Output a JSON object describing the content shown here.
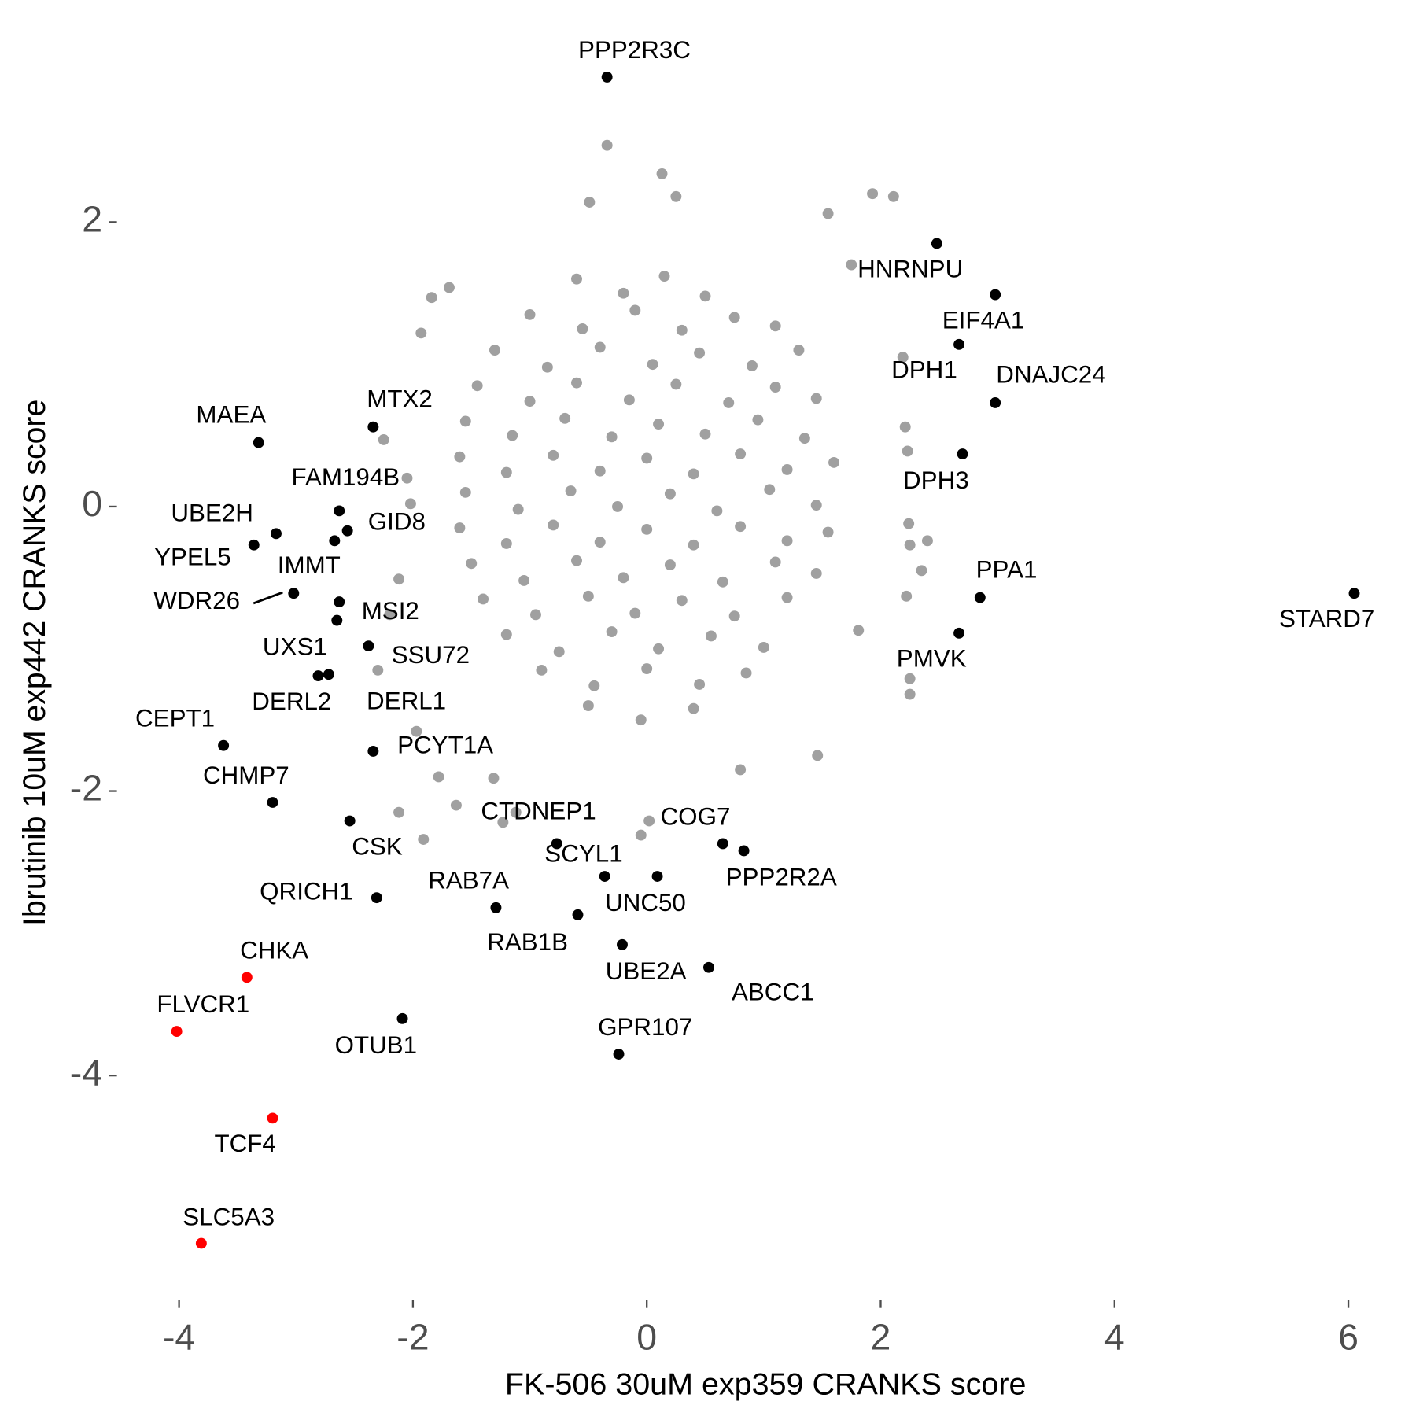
{
  "chart_data": {
    "type": "scatter",
    "x_label": "FK-506 30uM exp359 CRANKS score",
    "y_label": "Ibrutinib 10uM exp442 CRANKS score",
    "xlim": [
      -4.5,
      6.35
    ],
    "ylim": [
      -5.5,
      3.3
    ],
    "xticks": [
      -4,
      -2,
      0,
      2,
      4,
      6
    ],
    "yticks": [
      -4,
      -2,
      0,
      2
    ],
    "series": [
      {
        "color": "#a0a0a0",
        "x": [
          -0.34,
          0.13,
          1.93,
          2.11,
          -0.49,
          1.55,
          0.25,
          -1.84,
          -1.69,
          -1.93,
          1.75,
          2.19,
          2.21,
          2.23,
          2.24,
          2.25,
          2.4,
          2.35,
          2.22,
          2.25,
          2.25,
          1.81,
          1.46,
          -2.12,
          -2.2,
          -2.3,
          -2.12,
          -1.91,
          -1.97,
          -1.78,
          -1.31,
          -1.12,
          -1.23,
          -1.63,
          -0.05,
          0.02,
          0.8,
          -2.02,
          -2.25,
          -2.05,
          -0.6,
          -0.2,
          0.15,
          0.5,
          -1.0,
          -0.55,
          -0.1,
          0.3,
          0.75,
          1.1,
          -1.3,
          -0.85,
          -0.4,
          0.05,
          0.45,
          0.9,
          1.3,
          -1.45,
          -1.0,
          -0.6,
          -0.15,
          0.25,
          0.7,
          1.1,
          1.45,
          -1.55,
          -1.15,
          -0.7,
          -0.3,
          0.1,
          0.5,
          0.95,
          1.35,
          -1.6,
          -1.2,
          -0.8,
          -0.4,
          0.0,
          0.4,
          0.8,
          1.2,
          1.6,
          -1.55,
          -1.1,
          -0.65,
          -0.25,
          0.2,
          0.6,
          1.05,
          1.45,
          -1.6,
          -1.2,
          -0.8,
          -0.4,
          0.0,
          0.4,
          0.8,
          1.2,
          1.55,
          -1.5,
          -1.05,
          -0.6,
          -0.2,
          0.2,
          0.65,
          1.1,
          1.45,
          -1.4,
          -0.95,
          -0.5,
          -0.1,
          0.3,
          0.75,
          1.2,
          -1.2,
          -0.75,
          -0.3,
          0.1,
          0.55,
          1.0,
          -0.9,
          -0.45,
          0.0,
          0.45,
          0.85,
          -0.5,
          -0.05,
          0.4
        ],
        "y": [
          2.54,
          2.34,
          2.2,
          2.18,
          2.14,
          2.06,
          2.18,
          1.47,
          1.54,
          1.22,
          1.7,
          1.05,
          0.56,
          0.39,
          -0.12,
          -0.27,
          -0.24,
          -0.45,
          -0.63,
          -1.21,
          -1.32,
          -0.87,
          -1.75,
          -0.51,
          -0.76,
          -1.15,
          -2.15,
          -2.34,
          -1.58,
          -1.9,
          -1.91,
          -2.15,
          -2.22,
          -2.1,
          -2.31,
          -2.21,
          -1.85,
          0.02,
          0.47,
          0.2,
          1.6,
          1.5,
          1.62,
          1.48,
          1.35,
          1.25,
          1.38,
          1.24,
          1.33,
          1.27,
          1.1,
          0.98,
          1.12,
          1.0,
          1.08,
          0.99,
          1.1,
          0.85,
          0.74,
          0.87,
          0.75,
          0.86,
          0.73,
          0.84,
          0.76,
          0.6,
          0.5,
          0.62,
          0.49,
          0.58,
          0.51,
          0.61,
          0.48,
          0.35,
          0.24,
          0.36,
          0.25,
          0.34,
          0.23,
          0.37,
          0.26,
          0.31,
          0.1,
          -0.02,
          0.11,
          0.0,
          0.09,
          -0.03,
          0.12,
          0.01,
          -0.15,
          -0.26,
          -0.13,
          -0.25,
          -0.16,
          -0.27,
          -0.14,
          -0.24,
          -0.18,
          -0.4,
          -0.52,
          -0.38,
          -0.5,
          -0.41,
          -0.53,
          -0.39,
          -0.47,
          -0.65,
          -0.76,
          -0.63,
          -0.75,
          -0.66,
          -0.77,
          -0.64,
          -0.9,
          -1.02,
          -0.88,
          -1.0,
          -0.91,
          -0.99,
          -1.15,
          -1.26,
          -1.14,
          -1.25,
          -1.17,
          -1.4,
          -1.5,
          -1.42
        ]
      },
      {
        "color": "#000000",
        "labels": [
          "PPP2R3C",
          "HNRNPU",
          "EIF4A1",
          "DPH1",
          "DNAJC24",
          "DPH3",
          "PPA1",
          "STARD7",
          "PMVK",
          "MAEA",
          "MTX2",
          "FAM194B",
          "GID8",
          "UBE2H",
          "YPEL5",
          "IMMT",
          "WDR26",
          "MSI2",
          "UXS1",
          "SSU72",
          "DERL2",
          "DERL1",
          "CEPT1",
          "PCYT1A",
          "CHMP7",
          "CSK",
          "CTDNEP1",
          "COG7",
          "PPP2R2A",
          "SCYL1",
          "UNC50",
          "QRICH1",
          "RAB7A",
          "RAB1B",
          "UBE2A",
          "ABCC1",
          "OTUB1",
          "GPR107"
        ],
        "x": [
          -0.34,
          2.48,
          2.98,
          2.67,
          2.98,
          2.7,
          2.85,
          6.05,
          2.67,
          -3.32,
          -2.34,
          -2.63,
          -2.56,
          -3.17,
          -3.36,
          -2.67,
          -3.02,
          -2.63,
          -2.65,
          -2.38,
          -2.81,
          -2.72,
          -3.62,
          -2.34,
          -3.2,
          -2.54,
          -0.77,
          0.65,
          0.83,
          -0.36,
          0.09,
          -2.31,
          -1.29,
          -0.59,
          -0.21,
          0.53,
          -2.09,
          -0.24
        ],
        "y": [
          3.02,
          1.85,
          1.49,
          1.14,
          0.73,
          0.37,
          -0.64,
          -0.61,
          -0.89,
          0.45,
          0.56,
          -0.03,
          -0.17,
          -0.19,
          -0.27,
          -0.24,
          -0.61,
          -0.67,
          -0.8,
          -0.98,
          -1.19,
          -1.18,
          -1.68,
          -1.72,
          -2.08,
          -2.21,
          -2.37,
          -2.37,
          -2.42,
          -2.6,
          -2.6,
          -2.75,
          -2.82,
          -2.87,
          -3.08,
          -3.24,
          -3.6,
          -3.85
        ]
      },
      {
        "color": "#ff0000",
        "labels": [
          "CHKA",
          "FLVCR1",
          "TCF4",
          "SLC5A3"
        ],
        "x": [
          -3.42,
          -4.02,
          -3.2,
          -3.81
        ],
        "y": [
          -3.31,
          -3.69,
          -4.3,
          -5.18
        ]
      }
    ]
  }
}
